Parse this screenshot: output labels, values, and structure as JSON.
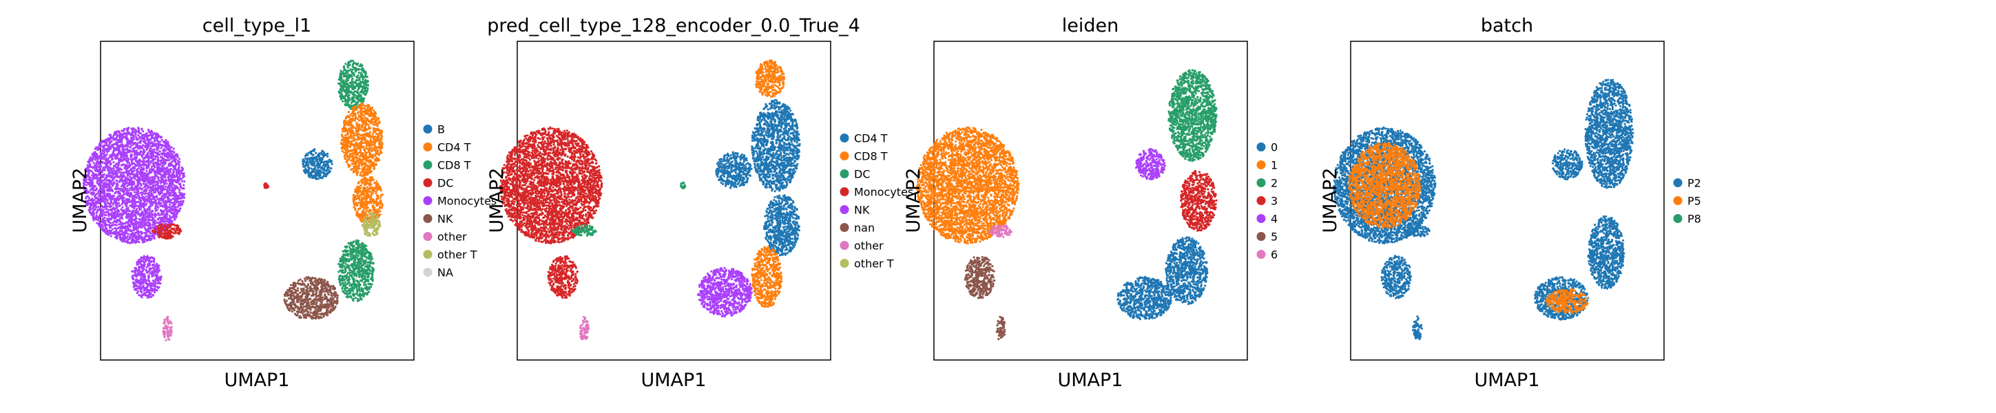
{
  "colors": {
    "blue": "#1f77b4",
    "orange": "#ff7f0e",
    "green": "#279e68",
    "red": "#d62728",
    "purple": "#aa40fc",
    "brown": "#8c564b",
    "pink": "#e377c2",
    "olive": "#b5bd61",
    "lightgray": "#d3d3d3"
  },
  "chart_data": [
    {
      "type": "scatter",
      "title": "cell_type_l1",
      "xlabel": "UMAP1",
      "ylabel": "UMAP2",
      "legend_position": "right",
      "legend": [
        {
          "label": "B",
          "color": "#1f77b4"
        },
        {
          "label": "CD4 T",
          "color": "#ff7f0e"
        },
        {
          "label": "CD8 T",
          "color": "#279e68"
        },
        {
          "label": "DC",
          "color": "#d62728"
        },
        {
          "label": "Monocytes",
          "color": "#aa40fc"
        },
        {
          "label": "NK",
          "color": "#8c564b"
        },
        {
          "label": "other",
          "color": "#e377c2"
        },
        {
          "label": "other T",
          "color": "#b5bd61"
        },
        {
          "label": "NA",
          "color": "#d3d3d3"
        }
      ],
      "clusters": [
        {
          "label": "Monocytes",
          "color": "#aa40fc",
          "cx": 0.09,
          "cy": 0.55,
          "rx": 0.17,
          "ry": 0.19
        },
        {
          "label": "Monocytes",
          "color": "#aa40fc",
          "cx": 0.13,
          "cy": 0.25,
          "rx": 0.05,
          "ry": 0.07
        },
        {
          "label": "DC",
          "color": "#d62728",
          "cx": 0.2,
          "cy": 0.4,
          "rx": 0.05,
          "ry": 0.025
        },
        {
          "label": "other",
          "color": "#e377c2",
          "cx": 0.2,
          "cy": 0.08,
          "rx": 0.015,
          "ry": 0.04
        },
        {
          "label": "CD8 T",
          "color": "#279e68",
          "cx": 0.82,
          "cy": 0.88,
          "rx": 0.05,
          "ry": 0.08
        },
        {
          "label": "CD4 T",
          "color": "#ff7f0e",
          "cx": 0.85,
          "cy": 0.7,
          "rx": 0.07,
          "ry": 0.12
        },
        {
          "label": "B",
          "color": "#1f77b4",
          "cx": 0.7,
          "cy": 0.62,
          "rx": 0.05,
          "ry": 0.05
        },
        {
          "label": "CD4 T",
          "color": "#ff7f0e",
          "cx": 0.87,
          "cy": 0.5,
          "rx": 0.05,
          "ry": 0.08
        },
        {
          "label": "other T",
          "color": "#b5bd61",
          "cx": 0.88,
          "cy": 0.42,
          "rx": 0.03,
          "ry": 0.04
        },
        {
          "label": "CD8 T",
          "color": "#279e68",
          "cx": 0.83,
          "cy": 0.27,
          "rx": 0.06,
          "ry": 0.1
        },
        {
          "label": "NK",
          "color": "#8c564b",
          "cx": 0.68,
          "cy": 0.18,
          "rx": 0.09,
          "ry": 0.07
        },
        {
          "label": "DC",
          "color": "#d62728",
          "cx": 0.53,
          "cy": 0.55,
          "rx": 0.008,
          "ry": 0.01
        }
      ]
    },
    {
      "type": "scatter",
      "title": "pred_cell_type_128_encoder_0.0_True_4",
      "xlabel": "UMAP1",
      "ylabel": "UMAP2",
      "legend_position": "right",
      "legend": [
        {
          "label": "CD4 T",
          "color": "#1f77b4"
        },
        {
          "label": "CD8 T",
          "color": "#ff7f0e"
        },
        {
          "label": "DC",
          "color": "#279e68"
        },
        {
          "label": "Monocytes",
          "color": "#d62728"
        },
        {
          "label": "NK",
          "color": "#aa40fc"
        },
        {
          "label": "nan",
          "color": "#8c564b"
        },
        {
          "label": "other",
          "color": "#e377c2"
        },
        {
          "label": "other T",
          "color": "#b5bd61"
        }
      ],
      "clusters": [
        {
          "label": "Monocytes",
          "color": "#d62728",
          "cx": 0.09,
          "cy": 0.55,
          "rx": 0.17,
          "ry": 0.19
        },
        {
          "label": "Monocytes",
          "color": "#d62728",
          "cx": 0.13,
          "cy": 0.25,
          "rx": 0.05,
          "ry": 0.07
        },
        {
          "label": "DC",
          "color": "#279e68",
          "cx": 0.2,
          "cy": 0.4,
          "rx": 0.04,
          "ry": 0.02
        },
        {
          "label": "other",
          "color": "#e377c2",
          "cx": 0.2,
          "cy": 0.08,
          "rx": 0.015,
          "ry": 0.04
        },
        {
          "label": "CD8 T",
          "color": "#ff7f0e",
          "cx": 0.82,
          "cy": 0.9,
          "rx": 0.05,
          "ry": 0.06
        },
        {
          "label": "CD4 T",
          "color": "#1f77b4",
          "cx": 0.84,
          "cy": 0.68,
          "rx": 0.08,
          "ry": 0.15
        },
        {
          "label": "CD4 T",
          "color": "#1f77b4",
          "cx": 0.7,
          "cy": 0.6,
          "rx": 0.06,
          "ry": 0.06
        },
        {
          "label": "CD4 T",
          "color": "#1f77b4",
          "cx": 0.86,
          "cy": 0.42,
          "rx": 0.06,
          "ry": 0.1
        },
        {
          "label": "CD8 T",
          "color": "#ff7f0e",
          "cx": 0.81,
          "cy": 0.25,
          "rx": 0.05,
          "ry": 0.1
        },
        {
          "label": "NK",
          "color": "#aa40fc",
          "cx": 0.67,
          "cy": 0.2,
          "rx": 0.09,
          "ry": 0.08
        },
        {
          "label": "DC",
          "color": "#279e68",
          "cx": 0.53,
          "cy": 0.55,
          "rx": 0.008,
          "ry": 0.01
        }
      ]
    },
    {
      "type": "scatter",
      "title": "leiden",
      "xlabel": "UMAP1",
      "ylabel": "UMAP2",
      "legend_position": "right",
      "legend": [
        {
          "label": "0",
          "color": "#1f77b4"
        },
        {
          "label": "1",
          "color": "#ff7f0e"
        },
        {
          "label": "2",
          "color": "#279e68"
        },
        {
          "label": "3",
          "color": "#d62728"
        },
        {
          "label": "4",
          "color": "#aa40fc"
        },
        {
          "label": "5",
          "color": "#8c564b"
        },
        {
          "label": "6",
          "color": "#e377c2"
        }
      ],
      "clusters": [
        {
          "label": "1",
          "color": "#ff7f0e",
          "cx": 0.09,
          "cy": 0.55,
          "rx": 0.17,
          "ry": 0.19
        },
        {
          "label": "5",
          "color": "#8c564b",
          "cx": 0.13,
          "cy": 0.25,
          "rx": 0.05,
          "ry": 0.07
        },
        {
          "label": "6",
          "color": "#e377c2",
          "cx": 0.2,
          "cy": 0.4,
          "rx": 0.04,
          "ry": 0.02
        },
        {
          "label": "5",
          "color": "#8c564b",
          "cx": 0.2,
          "cy": 0.08,
          "rx": 0.015,
          "ry": 0.04
        },
        {
          "label": "2",
          "color": "#279e68",
          "cx": 0.84,
          "cy": 0.78,
          "rx": 0.08,
          "ry": 0.15
        },
        {
          "label": "4",
          "color": "#aa40fc",
          "cx": 0.7,
          "cy": 0.62,
          "rx": 0.05,
          "ry": 0.05
        },
        {
          "label": "3",
          "color": "#d62728",
          "cx": 0.86,
          "cy": 0.5,
          "rx": 0.06,
          "ry": 0.1
        },
        {
          "label": "0",
          "color": "#1f77b4",
          "cx": 0.82,
          "cy": 0.27,
          "rx": 0.07,
          "ry": 0.11
        },
        {
          "label": "0",
          "color": "#1f77b4",
          "cx": 0.68,
          "cy": 0.18,
          "rx": 0.09,
          "ry": 0.07
        }
      ]
    },
    {
      "type": "scatter",
      "title": "batch",
      "xlabel": "UMAP1",
      "ylabel": "UMAP2",
      "legend_position": "right",
      "legend": [
        {
          "label": "P2",
          "color": "#1f77b4"
        },
        {
          "label": "P5",
          "color": "#ff7f0e"
        },
        {
          "label": "P8",
          "color": "#279e68"
        }
      ],
      "clusters": [
        {
          "label": "P2",
          "color": "#1f77b4",
          "cx": 0.09,
          "cy": 0.55,
          "rx": 0.17,
          "ry": 0.19
        },
        {
          "label": "P5",
          "color": "#ff7f0e",
          "cx": 0.09,
          "cy": 0.55,
          "rx": 0.12,
          "ry": 0.14
        },
        {
          "label": "P2",
          "color": "#1f77b4",
          "cx": 0.13,
          "cy": 0.25,
          "rx": 0.05,
          "ry": 0.07
        },
        {
          "label": "P2",
          "color": "#1f77b4",
          "cx": 0.2,
          "cy": 0.4,
          "rx": 0.04,
          "ry": 0.02
        },
        {
          "label": "P2",
          "color": "#1f77b4",
          "cx": 0.2,
          "cy": 0.08,
          "rx": 0.015,
          "ry": 0.04
        },
        {
          "label": "P2",
          "color": "#1f77b4",
          "cx": 0.84,
          "cy": 0.72,
          "rx": 0.08,
          "ry": 0.18
        },
        {
          "label": "P2",
          "color": "#1f77b4",
          "cx": 0.7,
          "cy": 0.62,
          "rx": 0.05,
          "ry": 0.05
        },
        {
          "label": "P2",
          "color": "#1f77b4",
          "cx": 0.83,
          "cy": 0.33,
          "rx": 0.06,
          "ry": 0.12
        },
        {
          "label": "P2",
          "color": "#1f77b4",
          "cx": 0.68,
          "cy": 0.18,
          "rx": 0.09,
          "ry": 0.07
        },
        {
          "label": "P5",
          "color": "#ff7f0e",
          "cx": 0.7,
          "cy": 0.17,
          "rx": 0.07,
          "ry": 0.04
        }
      ]
    }
  ]
}
